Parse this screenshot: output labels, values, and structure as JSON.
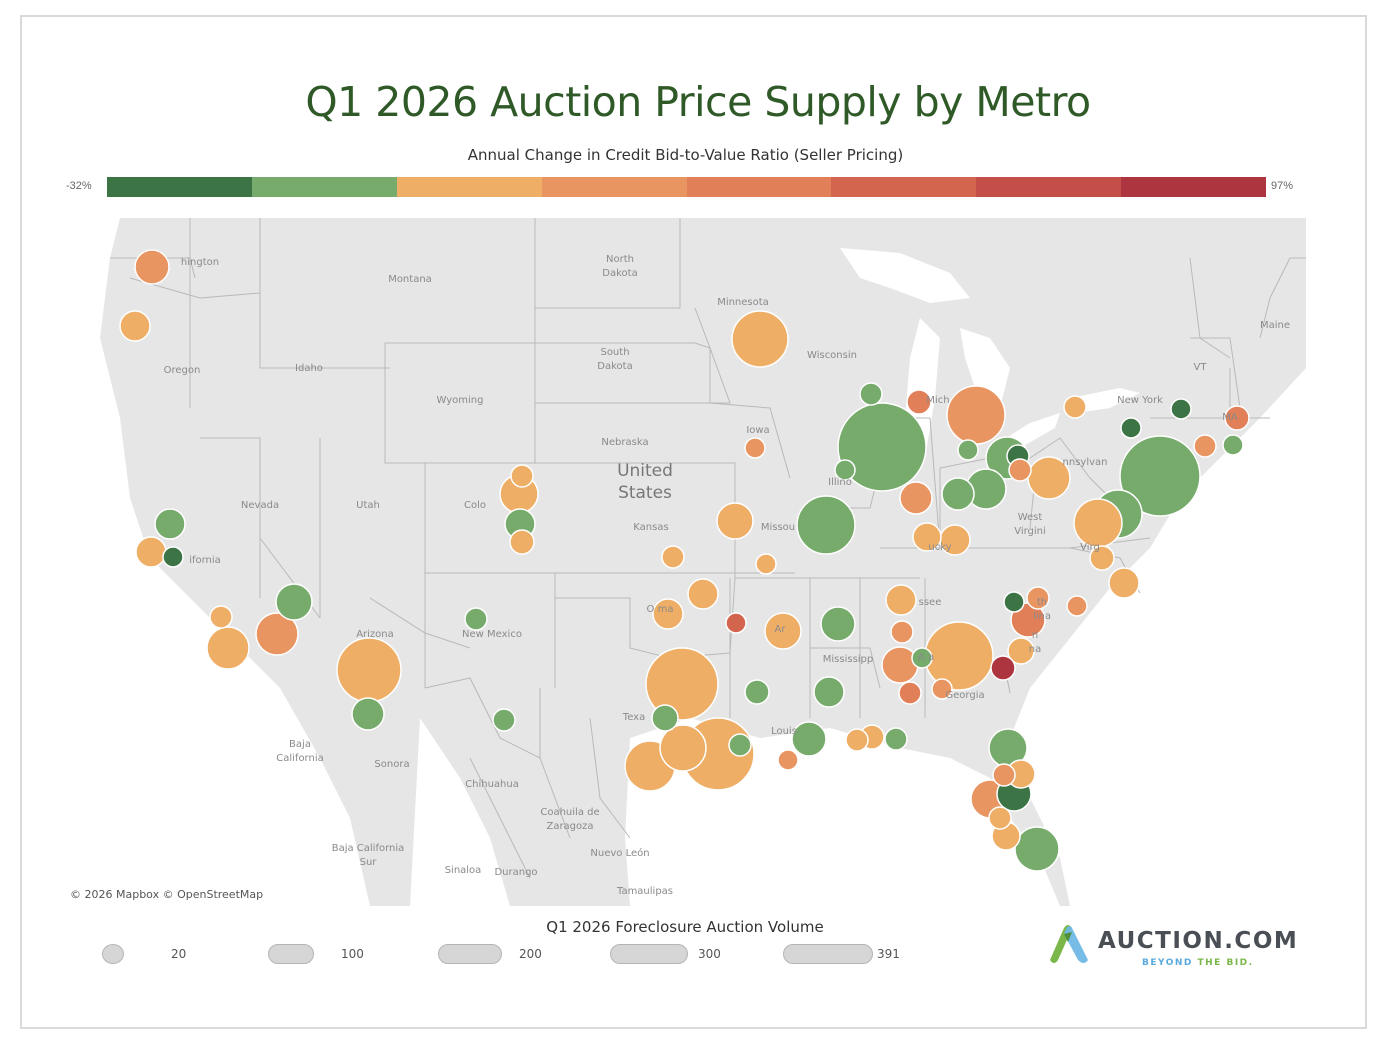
{
  "title": "Q1 2026 Auction Price Supply by Metro",
  "color_legend": {
    "title": "Annual Change in Credit Bid-to-Value Ratio (Seller Pricing)",
    "min_label": "-32%",
    "max_label": "97%",
    "bins": [
      "#3d7445",
      "#77ab6c",
      "#efae66",
      "#e89562",
      "#e07f58",
      "#d3654f",
      "#c34f48",
      "#ad3540"
    ]
  },
  "map": {
    "attribution": "© 2026 Mapbox  © OpenStreetMap",
    "country_label": "United\nStates",
    "region_labels": [
      "hington",
      "Montana",
      "North\nDakota",
      "Minnesota",
      "Maine",
      "Oregon",
      "Idaho",
      "South\nDakota",
      "Wisconsin",
      "Wyoming",
      "Mich",
      "VT",
      "New York",
      "MA",
      "Iowa",
      "Nebraska",
      "nnsylvan",
      "Nevada",
      "Utah",
      "Colo",
      "Kansas",
      "Illino",
      "Missou",
      "West\nVirgini",
      "Virg",
      "ifornia",
      "ucky",
      "ssee",
      "th\nlina",
      "O     ma",
      "Ar",
      "n\nna",
      "Arizona",
      "New Mexico",
      "Mississipp",
      "A    a",
      "Georgia",
      "Texa",
      "Louis",
      "Baja\nCalifornia",
      "Sonora",
      "Chihuahua",
      "Coahuila de\nZaragoza",
      "Baja California\nSur",
      "Nuevo León",
      "Sinaloa",
      "Durango",
      "Tamaulipas"
    ]
  },
  "size_legend": {
    "title": "Q1 2026 Foreclosure Auction Volume",
    "values": [
      "20",
      "100",
      "200",
      "300",
      "391"
    ]
  },
  "logo": {
    "wordmark": "AUCTION.COM",
    "tagline_part1": "BEYOND",
    "tagline_part2": "THE BID."
  }
}
